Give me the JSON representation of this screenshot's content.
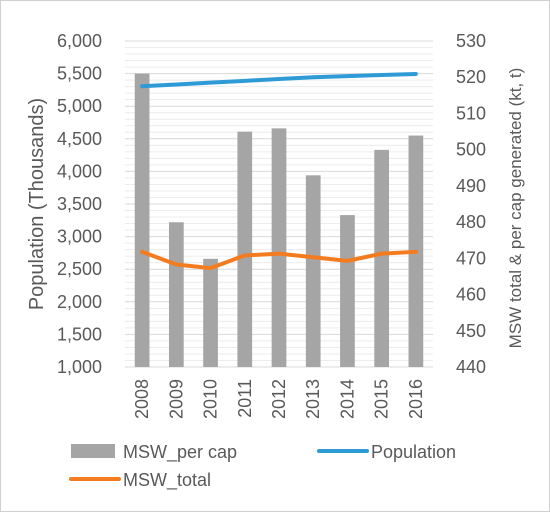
{
  "chart_data": {
    "type": "bar+line",
    "categories": [
      "2008",
      "2009",
      "2010",
      "2011",
      "2012",
      "2013",
      "2014",
      "2015",
      "2016"
    ],
    "left_axis": {
      "label": "Population (Thousands)",
      "range": [
        1000,
        6000
      ],
      "ticks": [
        "1,000",
        "1,500",
        "2,000",
        "2,500",
        "3,000",
        "3,500",
        "4,000",
        "4,500",
        "5,000",
        "5,500",
        "6,000"
      ]
    },
    "right_axis": {
      "label": "MSW total & per cap generated (kt, t)",
      "range": [
        440,
        530
      ],
      "ticks": [
        "440",
        "450",
        "460",
        "470",
        "480",
        "490",
        "500",
        "510",
        "520",
        "530"
      ]
    },
    "series": [
      {
        "name": "MSW_per cap",
        "kind": "bar",
        "axis": "left",
        "color": "#a5a5a5",
        "values": [
          5500,
          3220,
          2660,
          4610,
          4660,
          3940,
          3330,
          4330,
          4550
        ]
      },
      {
        "name": "Population",
        "kind": "line",
        "axis": "right",
        "color": "#2e9ad6",
        "values": [
          517.5,
          518.0,
          518.5,
          519.0,
          519.5,
          520.0,
          520.3,
          520.6,
          520.9
        ]
      },
      {
        "name": "MSW_total",
        "kind": "line",
        "axis": "right",
        "color": "#f47c20",
        "values": [
          471.8,
          468.3,
          467.3,
          470.8,
          471.3,
          470.3,
          469.3,
          471.3,
          471.8
        ]
      }
    ],
    "grid": true,
    "legend": "bottom"
  }
}
